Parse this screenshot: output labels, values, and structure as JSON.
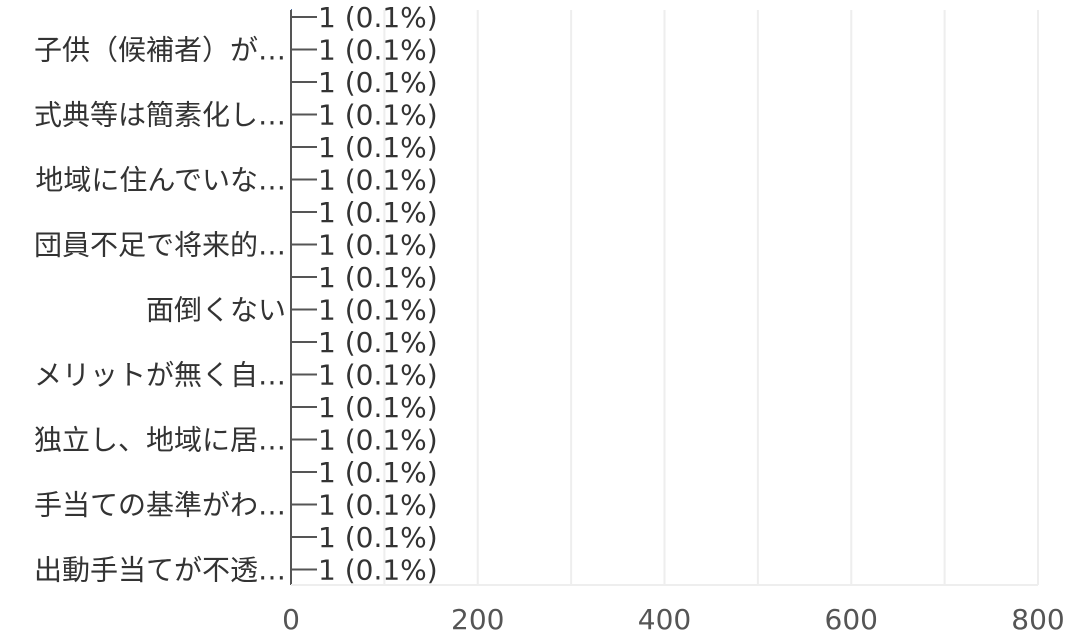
{
  "chart_data": {
    "type": "bar",
    "orientation": "horizontal",
    "title": "",
    "xlabel": "",
    "ylabel": "",
    "xlim": [
      0,
      800
    ],
    "x_ticks": [
      "0",
      "200",
      "400",
      "600",
      "800"
    ],
    "grid": "vertical",
    "rows": [
      {
        "category": "",
        "value": 1,
        "label": "1 (0.1%)"
      },
      {
        "category": "子供（候補者）が…",
        "value": 1,
        "label": "1 (0.1%)"
      },
      {
        "category": "",
        "value": 1,
        "label": "1 (0.1%)"
      },
      {
        "category": "式典等は簡素化し…",
        "value": 1,
        "label": "1 (0.1%)"
      },
      {
        "category": "",
        "value": 1,
        "label": "1 (0.1%)"
      },
      {
        "category": "地域に住んでいな…",
        "value": 1,
        "label": "1 (0.1%)"
      },
      {
        "category": "",
        "value": 1,
        "label": "1 (0.1%)"
      },
      {
        "category": "団員不足で将来的…",
        "value": 1,
        "label": "1 (0.1%)"
      },
      {
        "category": "",
        "value": 1,
        "label": "1 (0.1%)"
      },
      {
        "category": "面倒くない",
        "value": 1,
        "label": "1 (0.1%)"
      },
      {
        "category": "",
        "value": 1,
        "label": "1 (0.1%)"
      },
      {
        "category": "メリットが無く自…",
        "value": 1,
        "label": "1 (0.1%)"
      },
      {
        "category": "",
        "value": 1,
        "label": "1 (0.1%)"
      },
      {
        "category": "独立し、地域に居…",
        "value": 1,
        "label": "1 (0.1%)"
      },
      {
        "category": "",
        "value": 1,
        "label": "1 (0.1%)"
      },
      {
        "category": "手当ての基準がわ…",
        "value": 1,
        "label": "1 (0.1%)"
      },
      {
        "category": "",
        "value": 1,
        "label": "1 (0.1%)"
      },
      {
        "category": "出動手当てが不透…",
        "value": 1,
        "label": "1 (0.1%)"
      }
    ],
    "colors": {
      "axis": "#555555",
      "grid": "#eeeeee",
      "text": "#333333",
      "bar": "#4a6fa5"
    }
  }
}
